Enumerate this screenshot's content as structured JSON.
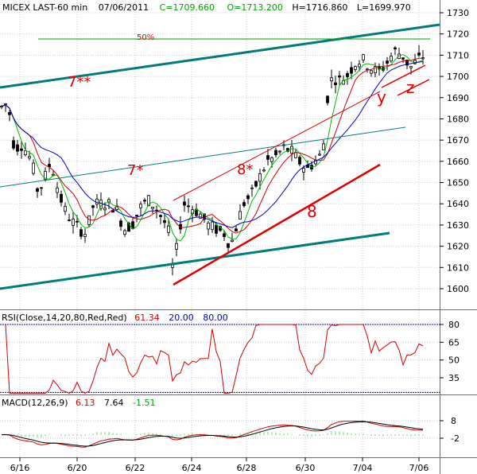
{
  "header": {
    "symbol": "MICEX LAST-60 min",
    "date": "07/06/2011",
    "close": "C=1709.660",
    "open": "O=1713.200",
    "high": "H=1716.860",
    "low": "L=1699.970",
    "open_color": "#00a000",
    "close_color": "#00a000",
    "text_color": "#000000"
  },
  "chart_data": [
    {
      "type": "candlestick",
      "title": "MICEX LAST-60 min",
      "ylim": [
        1595,
        1733
      ],
      "yticks": [
        "1730",
        "1720",
        "1710",
        "1700",
        "1690",
        "1680",
        "1670",
        "1660",
        "1650",
        "1640",
        "1630",
        "1620",
        "1610",
        "1600"
      ],
      "xticks": [
        "6/16",
        "6/20",
        "6/22",
        "6/24",
        "6/28",
        "6/30",
        "7/04",
        "7/06"
      ],
      "colors": {
        "up": "#000000",
        "down": "#000000",
        "ma_fast": "#00bb00",
        "ma_mid": "#d00000",
        "ma_slow": "#0000c0",
        "channel": "#007c7c",
        "trend": "#e00000"
      },
      "overlays": [
        "ma_fast",
        "ma_mid",
        "ma_slow"
      ],
      "annotations": [
        {
          "text": "50%"
        },
        {
          "text": "7**"
        },
        {
          "text": "7*"
        },
        {
          "text": "8*"
        },
        {
          "text": "8"
        },
        {
          "text": "y"
        },
        {
          "text": "z"
        }
      ]
    },
    {
      "type": "line",
      "title": "RSI(Close,14,20,80,Red,Red)",
      "values_label": [
        "61.34",
        "20.00",
        "80.00"
      ],
      "ylim": [
        18,
        86
      ],
      "yticks": [
        "80",
        "65",
        "50",
        "35"
      ],
      "series_color": "#d00000",
      "level_color": "#0000c0",
      "levels": [
        20,
        80
      ]
    },
    {
      "type": "line",
      "title": "MACD(12,26,9)",
      "values_label": [
        "6.13",
        "7.64",
        "-1.51"
      ],
      "ylim": [
        -8,
        13
      ],
      "yticks": [
        "8",
        "-2"
      ],
      "macd_color": "#d00000",
      "signal_color": "#000000",
      "hist_color": "#00a000"
    }
  ]
}
